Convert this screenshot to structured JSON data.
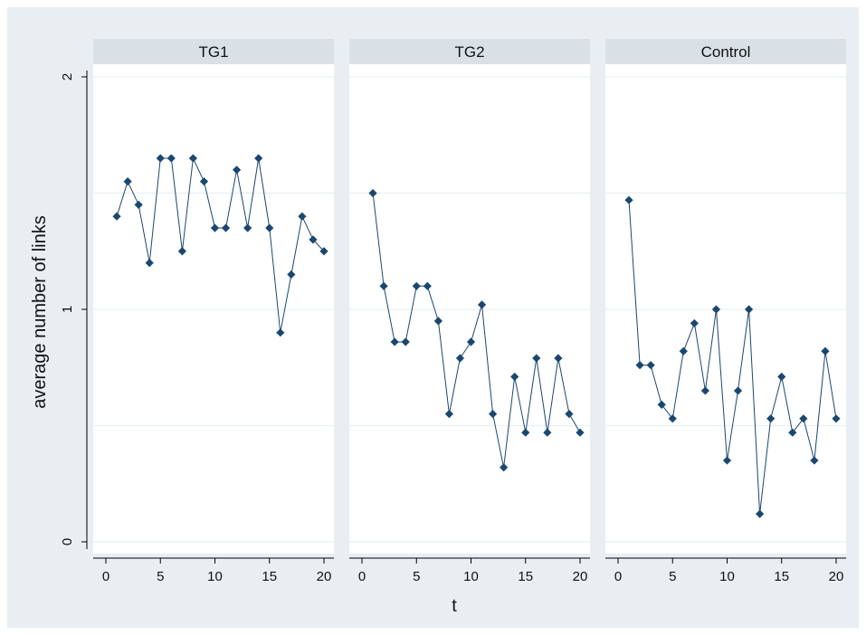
{
  "chart_data": {
    "type": "line",
    "xlabel": "t",
    "ylabel": "average number of links",
    "x_ticks": [
      "0",
      "5",
      "10",
      "15",
      "20"
    ],
    "y_ticks": [
      "0",
      "1",
      "2"
    ],
    "xlim": [
      -1,
      21
    ],
    "ylim": [
      -0.05,
      2.05
    ],
    "grid": true,
    "colors": {
      "outer_background": "#e8eef2",
      "panel_background": "#ffffff",
      "panel_header": "#d9e1e7",
      "grid": "#eaf0f3",
      "line": "#1a476f",
      "marker": "#1a476f"
    },
    "panels": [
      {
        "title": "TG1",
        "x": [
          1,
          2,
          3,
          4,
          5,
          6,
          7,
          8,
          9,
          10,
          11,
          12,
          13,
          14,
          15,
          16,
          17,
          18,
          19,
          20
        ],
        "y": [
          1.4,
          1.55,
          1.45,
          1.2,
          1.65,
          1.65,
          1.25,
          1.65,
          1.55,
          1.35,
          1.35,
          1.6,
          1.35,
          1.65,
          1.35,
          0.9,
          1.15,
          1.4,
          1.3,
          1.25
        ]
      },
      {
        "title": "TG2",
        "x": [
          1,
          2,
          3,
          4,
          5,
          6,
          7,
          8,
          9,
          10,
          11,
          12,
          13,
          14,
          15,
          16,
          17,
          18,
          19,
          20
        ],
        "y": [
          1.5,
          1.1,
          0.86,
          0.86,
          1.1,
          1.1,
          0.95,
          0.55,
          0.79,
          0.86,
          1.02,
          0.55,
          0.32,
          0.71,
          0.47,
          0.79,
          0.47,
          0.79,
          0.55,
          0.47
        ]
      },
      {
        "title": "Control",
        "x": [
          1,
          2,
          3,
          4,
          5,
          6,
          7,
          8,
          9,
          10,
          11,
          12,
          13,
          14,
          15,
          16,
          17,
          18,
          19,
          20
        ],
        "y": [
          1.47,
          0.76,
          0.76,
          0.59,
          0.53,
          0.82,
          0.94,
          0.65,
          1.0,
          0.35,
          0.65,
          1.0,
          0.12,
          0.53,
          0.71,
          0.47,
          0.53,
          0.35,
          0.82,
          0.53
        ]
      }
    ]
  }
}
